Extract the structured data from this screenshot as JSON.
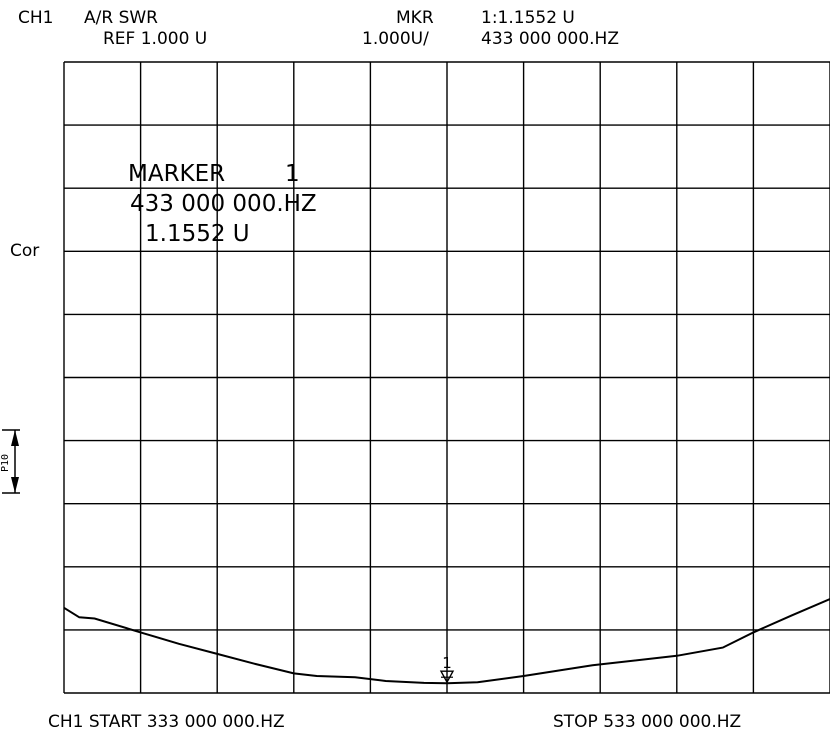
{
  "header": {
    "channel": "CH1",
    "measurement": "A/R SWR",
    "reference": "REF 1.000 U",
    "marker_label": "MKR",
    "marker_reading": "1:1.1552 U",
    "scale": "1.000U/",
    "marker_frequency": "433 000 000.HZ"
  },
  "side_labels": {
    "correction": "Cor",
    "reference_pointer": "P10"
  },
  "marker_box": {
    "title": "MARKER",
    "number": "1",
    "frequency": "433 000 000.HZ",
    "value": "1.1552 U"
  },
  "footer": {
    "start": "CH1 START 333 000 000.HZ",
    "stop": "STOP 533 000 000.HZ"
  },
  "colors": {
    "background": "#ffffff",
    "trace": "#000000",
    "grid": "#000000"
  },
  "chart_data": {
    "type": "line",
    "x_unit": "HZ",
    "x_start": 333000000,
    "x_stop": 533000000,
    "x_divisions": 10,
    "y_unit": "U",
    "y_reference": 1.0,
    "y_scale_per_div": 1.0,
    "y_divisions": 10,
    "grid": true,
    "ylim": [
      1.0,
      11.0
    ],
    "series": [
      {
        "values": [
          [
            333000000,
            2.35
          ],
          [
            337000000,
            2.2
          ],
          [
            341000000,
            2.18
          ],
          [
            353000000,
            1.96
          ],
          [
            363000000,
            1.78
          ],
          [
            373000000,
            1.62
          ],
          [
            383000000,
            1.46
          ],
          [
            393000000,
            1.31
          ],
          [
            399000000,
            1.27
          ],
          [
            409000000,
            1.25
          ],
          [
            417000000,
            1.19
          ],
          [
            427000000,
            1.16
          ],
          [
            433000000,
            1.1552
          ],
          [
            441000000,
            1.17
          ],
          [
            453000000,
            1.27
          ],
          [
            471000000,
            1.44
          ],
          [
            493000000,
            1.59
          ],
          [
            505000000,
            1.72
          ],
          [
            513000000,
            1.96
          ],
          [
            523000000,
            2.23
          ],
          [
            533000000,
            2.49
          ]
        ]
      }
    ],
    "markers": [
      {
        "label": "1",
        "x": 433000000,
        "y": 1.1552
      }
    ]
  }
}
